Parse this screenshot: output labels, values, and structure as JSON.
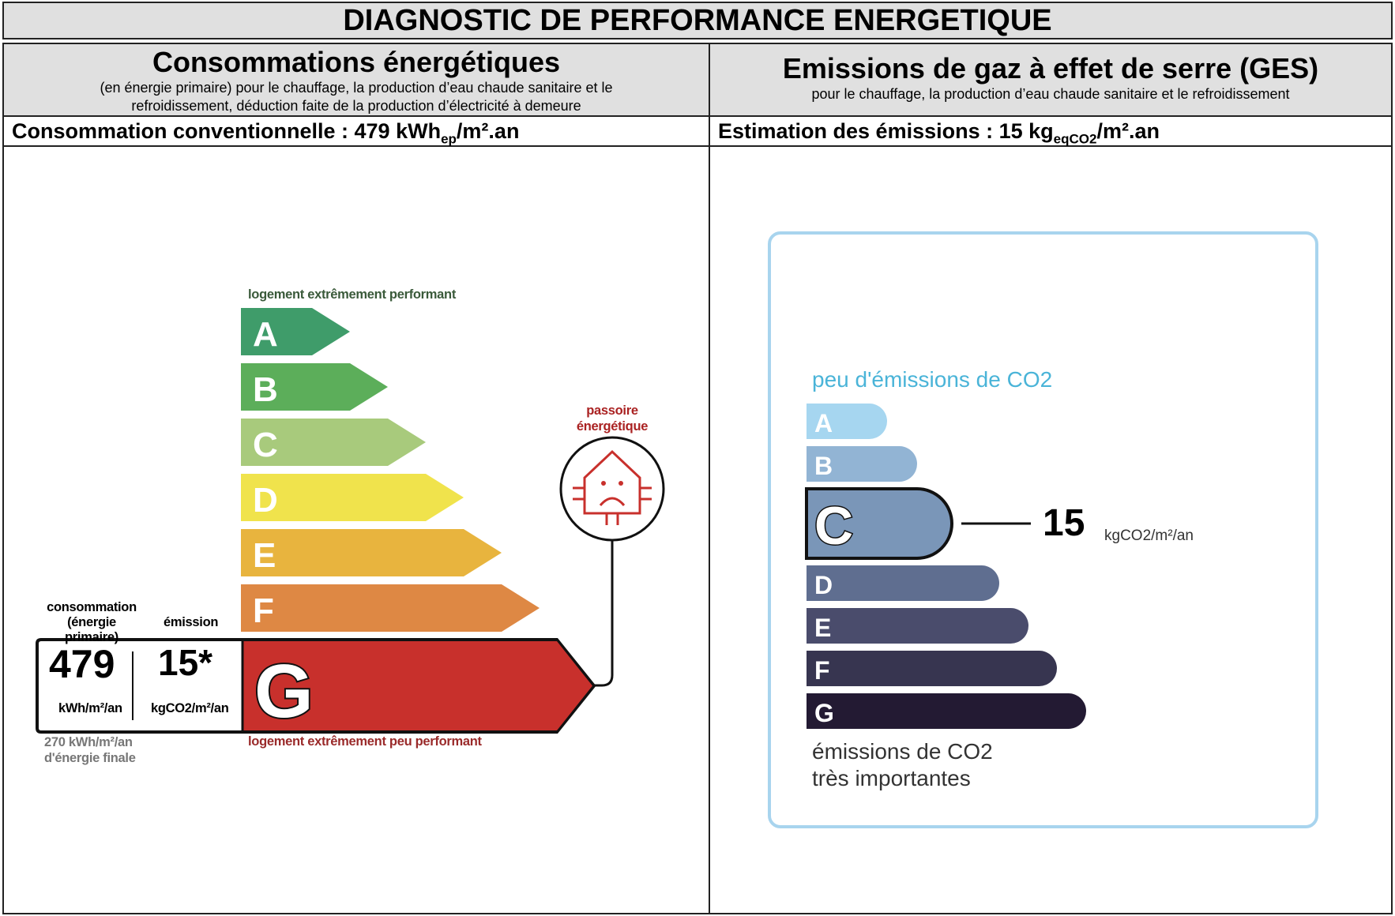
{
  "title": "DIAGNOSTIC DE PERFORMANCE ENERGETIQUE",
  "left": {
    "heading": "Consommations énergétiques",
    "description": "(en énergie primaire) pour le chauffage, la production d’eau chaude sanitaire et le refroidissement, déduction faite de la production d’électricité à demeure",
    "summary_prefix": "Consommation conventionnelle : 479 kWh",
    "summary_sub": "ep",
    "summary_suffix": "/m².an",
    "top_label": "logement extrêmement performant",
    "bottom_label": "logement extrêmement peu performant",
    "classes": [
      "A",
      "B",
      "C",
      "D",
      "E",
      "F",
      "G"
    ],
    "colors": [
      "#3f9c6a",
      "#5cae5a",
      "#a8ca7c",
      "#f0e34c",
      "#e8b43e",
      "#de8844",
      "#c8302c"
    ],
    "current_class": "G",
    "consumption_label": "consommation",
    "consumption_sub": "(énergie primaire)",
    "emission_label": "émission",
    "consumption_value": "479",
    "consumption_unit": "kWh/m²/an",
    "emission_value": "15*",
    "emission_unit": "kgCO2/m²/an",
    "final_energy": "270 kWh/m²/an",
    "final_energy_label": "d'énergie finale",
    "passoire": "passoire",
    "passoire2": "énergétique"
  },
  "right": {
    "heading": "Emissions de gaz à effet de serre (GES)",
    "description": "pour le chauffage, la production d’eau chaude sanitaire et le refroidissement",
    "summary_prefix": "Estimation des émissions : 15 kg",
    "summary_sub": "eqCO2",
    "summary_suffix": "/m².an",
    "top_label": "peu d'émissions de CO2",
    "bottom_label1": "émissions de CO2",
    "bottom_label2": "très importantes",
    "classes": [
      "A",
      "B",
      "C",
      "D",
      "E",
      "F",
      "G"
    ],
    "colors": [
      "#a6d6f0",
      "#92b4d4",
      "#7a96b8",
      "#5f6e90",
      "#4a4c6c",
      "#373550",
      "#231a33"
    ],
    "current_class": "C",
    "value": "15",
    "unit": "kgCO2/m²/an"
  }
}
